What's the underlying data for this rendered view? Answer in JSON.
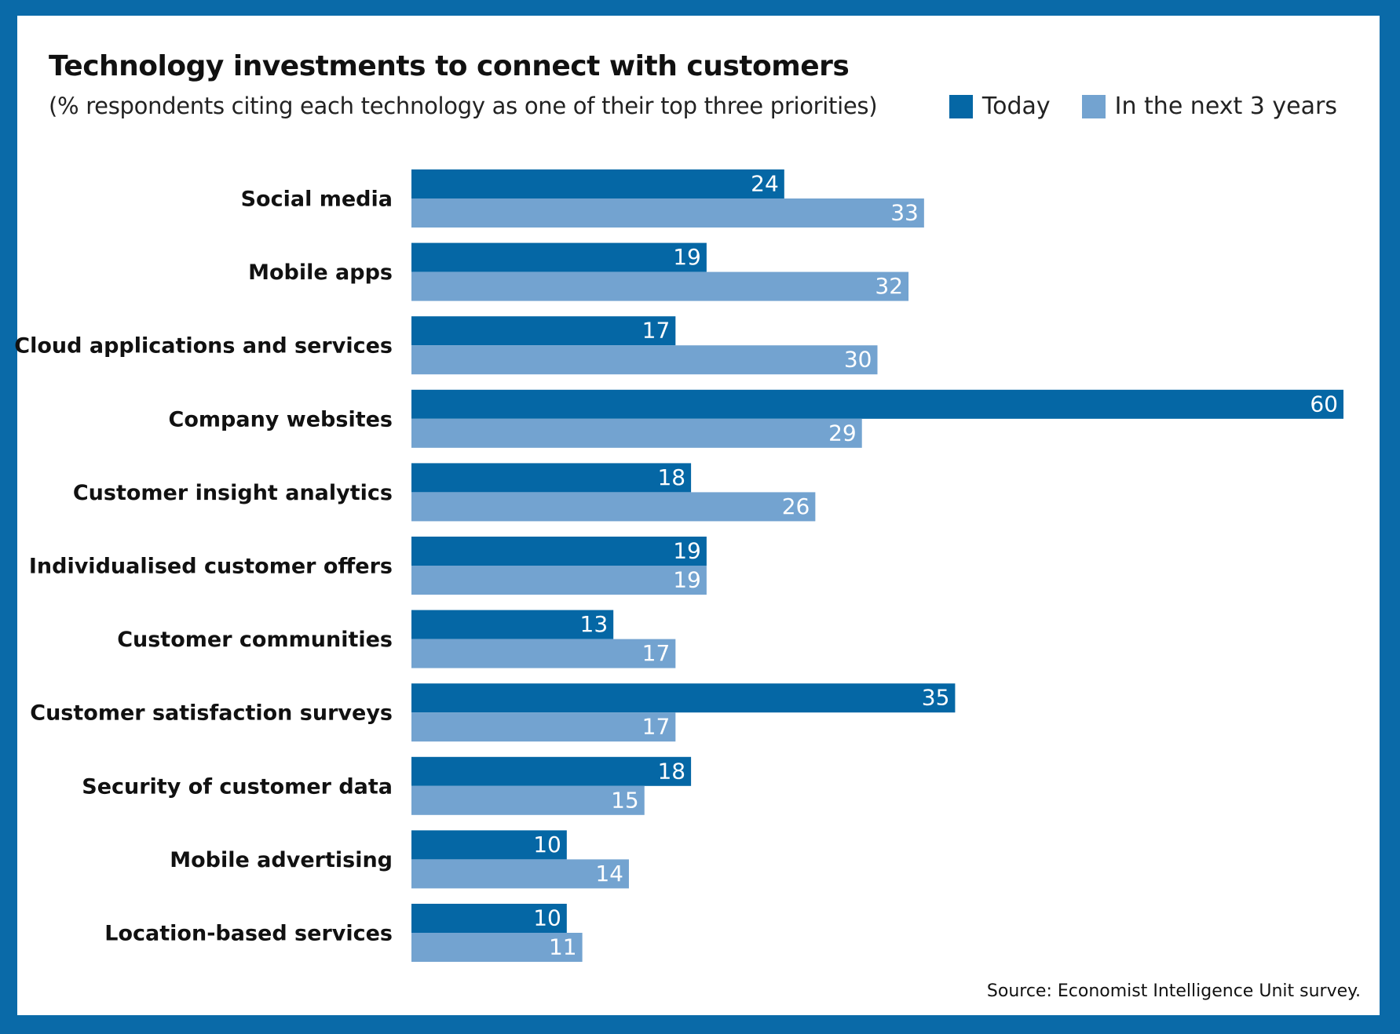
{
  "colors": {
    "frame": "#0a6aa8",
    "today": "#0567a5",
    "next": "#73a3d0",
    "value_text": "#ffffff",
    "label_text": "#111111"
  },
  "chart_data": {
    "type": "bar",
    "orientation": "horizontal",
    "title": "Technology investments to connect with customers",
    "subtitle": "(% respondents citing each technology as one of their top three priorities)",
    "categories": [
      "Social media",
      "Mobile apps",
      "Cloud applications and services",
      "Company websites",
      "Customer insight analytics",
      "Individualised customer offers",
      "Customer communities",
      "Customer satisfaction surveys",
      "Security of customer data",
      "Mobile advertising",
      "Location-based services"
    ],
    "series": [
      {
        "name": "Today",
        "values": [
          24,
          19,
          17,
          60,
          18,
          19,
          13,
          35,
          18,
          10,
          10
        ]
      },
      {
        "name": "In the next 3 years",
        "values": [
          33,
          32,
          30,
          29,
          26,
          19,
          17,
          17,
          15,
          14,
          11
        ]
      }
    ],
    "xlim": [
      0,
      60
    ],
    "grid": false,
    "legend": "top-right",
    "data_labels": true,
    "source": "Source: Economist Intelligence Unit survey."
  }
}
